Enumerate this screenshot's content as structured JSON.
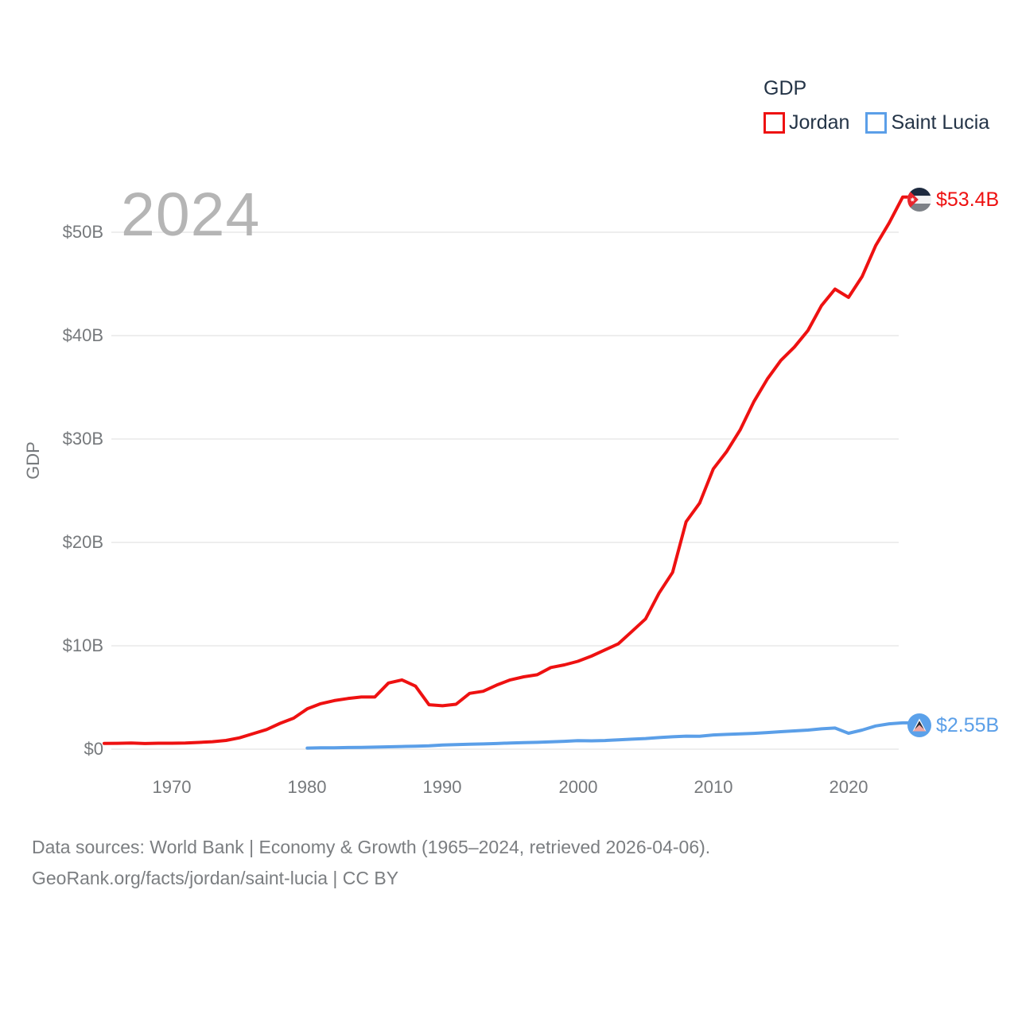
{
  "legend": {
    "title": "GDP",
    "items": [
      {
        "label": "Jordan",
        "color": "#ee1111",
        "icon": "jordan-flag-icon"
      },
      {
        "label": "Saint Lucia",
        "color": "#5b9fe8",
        "icon": "saint-lucia-flag-icon"
      }
    ]
  },
  "watermark": "2024",
  "axes": {
    "y_label": "GDP",
    "y_ticks": [
      {
        "label": "$0",
        "value": 0
      },
      {
        "label": "$10B",
        "value": 10
      },
      {
        "label": "$20B",
        "value": 20
      },
      {
        "label": "$30B",
        "value": 30
      },
      {
        "label": "$40B",
        "value": 40
      },
      {
        "label": "$50B",
        "value": 50
      }
    ],
    "x_ticks": [
      {
        "label": "1970",
        "value": 1970
      },
      {
        "label": "1980",
        "value": 1980
      },
      {
        "label": "1990",
        "value": 1990
      },
      {
        "label": "2000",
        "value": 2000
      },
      {
        "label": "2010",
        "value": 2010
      },
      {
        "label": "2020",
        "value": 2020
      }
    ]
  },
  "end_labels": [
    {
      "series": "Jordan",
      "text": "$53.4B",
      "color": "#ee1111",
      "icon": "jordan-flag-icon"
    },
    {
      "series": "Saint Lucia",
      "text": "$2.55B",
      "color": "#5b9fe8",
      "icon": "saint-lucia-flag-icon"
    }
  ],
  "footer": {
    "line1": "Data sources: World Bank | Economy & Growth (1965–2024, retrieved 2026-04-06).",
    "line2": "GeoRank.org/facts/jordan/saint-lucia | CC BY"
  },
  "chart_data": {
    "type": "line",
    "title": "GDP",
    "ylabel": "GDP",
    "unit": "billion USD",
    "x_range": [
      1965,
      2024
    ],
    "ylim": [
      0,
      55
    ],
    "x_tick_values": [
      1970,
      1980,
      1990,
      2000,
      2010,
      2020
    ],
    "y_tick_values_billions": [
      0,
      10,
      20,
      30,
      40,
      50
    ],
    "grid": "horizontal-only",
    "legend_position": "top-right",
    "series": [
      {
        "name": "Jordan",
        "color": "#ee1111",
        "start_year": 1965,
        "end_value_label": "$53.4B",
        "values": [
          0.56,
          0.57,
          0.6,
          0.55,
          0.58,
          0.58,
          0.6,
          0.65,
          0.72,
          0.85,
          1.1,
          1.5,
          1.9,
          2.5,
          3.0,
          3.9,
          4.4,
          4.7,
          4.9,
          5.05,
          5.05,
          6.4,
          6.7,
          6.1,
          4.3,
          4.2,
          4.35,
          5.4,
          5.6,
          6.2,
          6.7,
          7.0,
          7.2,
          7.9,
          8.15,
          8.5,
          9.0,
          9.6,
          10.2,
          11.4,
          12.6,
          15.1,
          17.1,
          22.0,
          23.8,
          27.1,
          28.8,
          30.9,
          33.6,
          35.8,
          37.6,
          38.9,
          40.5,
          42.9,
          44.5,
          43.7,
          45.7,
          48.7,
          50.9,
          53.4
        ]
      },
      {
        "name": "Saint Lucia",
        "color": "#5b9fe8",
        "start_year": 1980,
        "end_value_label": "$2.55B",
        "values": [
          0.11,
          0.13,
          0.14,
          0.16,
          0.18,
          0.2,
          0.23,
          0.26,
          0.29,
          0.32,
          0.4,
          0.44,
          0.48,
          0.51,
          0.55,
          0.6,
          0.63,
          0.66,
          0.71,
          0.76,
          0.83,
          0.81,
          0.84,
          0.9,
          0.97,
          1.03,
          1.12,
          1.2,
          1.26,
          1.25,
          1.38,
          1.43,
          1.48,
          1.53,
          1.61,
          1.69,
          1.77,
          1.85,
          1.97,
          2.05,
          1.54,
          1.85,
          2.25,
          2.45,
          2.55
        ]
      }
    ]
  }
}
